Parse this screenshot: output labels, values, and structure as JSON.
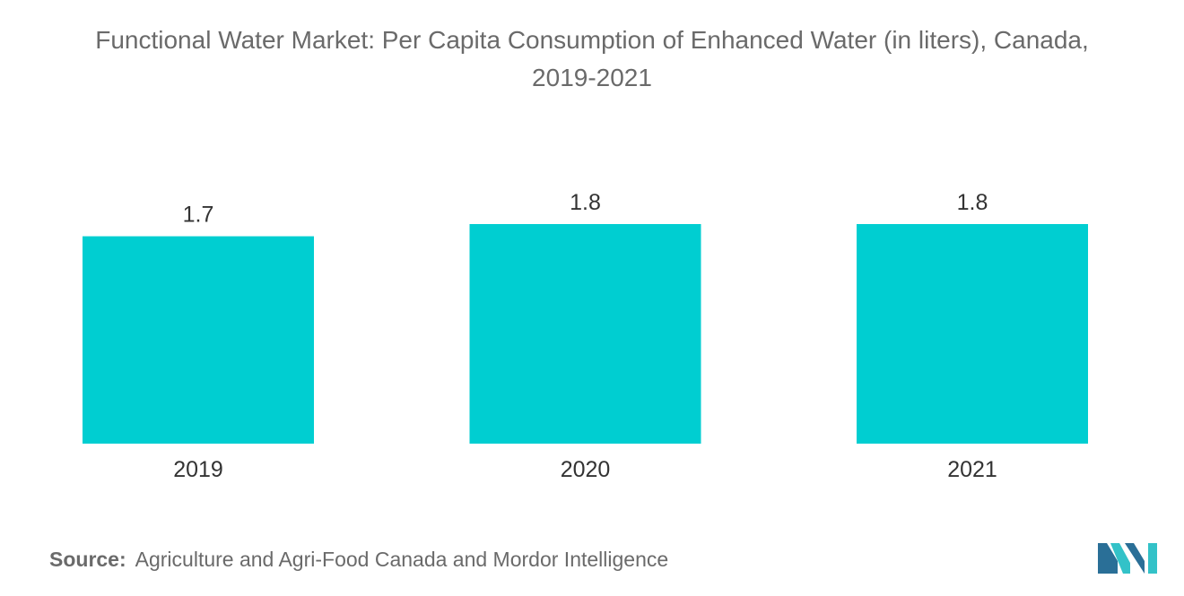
{
  "chart_data": {
    "type": "bar",
    "title_line1": "Functional Water Market: Per Capita Consumption of Enhanced Water (in liters), Canada,",
    "title_line2": "2019-2021",
    "categories": [
      "2019",
      "2020",
      "2021"
    ],
    "values": [
      1.7,
      1.8,
      1.8
    ],
    "value_labels": [
      "1.7",
      "1.8",
      "1.8"
    ],
    "xlabel": "",
    "ylabel": "",
    "ylim": [
      0,
      1.8
    ],
    "grid": false,
    "legend": "none",
    "bar_color": "#00CED1"
  },
  "source": {
    "label": "Source:",
    "text": "Agriculture and Agri-Food Canada and Mordor Intelligence"
  },
  "logo": {
    "icon": "mordor-intelligence-logo-icon",
    "colors": [
      "#2a6f97",
      "#33c2c8"
    ]
  }
}
